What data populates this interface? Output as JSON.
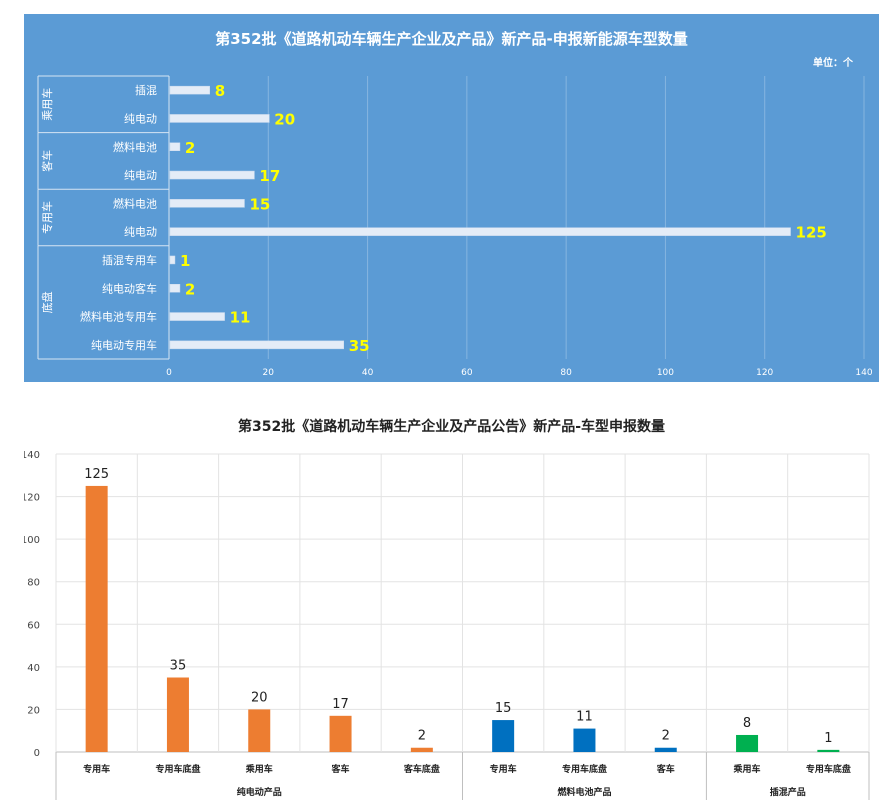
{
  "chart_data": [
    {
      "type": "bar",
      "orientation": "horizontal",
      "title": "第352批《道路机动车辆生产企业及产品》新产品-申报新能源车型数量",
      "unit_label": "单位：个",
      "groups": [
        {
          "name": "乘用车",
          "items": [
            {
              "label": "插混",
              "value": 8
            },
            {
              "label": "纯电动",
              "value": 20
            }
          ]
        },
        {
          "name": "客车",
          "items": [
            {
              "label": "燃料电池",
              "value": 2
            },
            {
              "label": "纯电动",
              "value": 17
            }
          ]
        },
        {
          "name": "专用车",
          "items": [
            {
              "label": "燃料电池",
              "value": 15
            },
            {
              "label": "纯电动",
              "value": 125
            }
          ]
        },
        {
          "name": "底盘",
          "items": [
            {
              "label": "插混专用车",
              "value": 1
            },
            {
              "label": "纯电动客车",
              "value": 2
            },
            {
              "label": "燃料电池专用车",
              "value": 11
            },
            {
              "label": "纯电动专用车",
              "value": 35
            }
          ]
        }
      ],
      "xlim": [
        0,
        140
      ],
      "xticks": [
        0,
        20,
        40,
        60,
        80,
        100,
        120,
        140
      ],
      "grid": true,
      "colors": {
        "background": "#5b9bd5",
        "bar": "#e4ecf7",
        "value_label": "#ffff00",
        "text": "#ffffff"
      }
    },
    {
      "type": "bar",
      "title": "第352批《道路机动车辆生产企业及产品公告》新产品-车型申报数量",
      "groups": [
        {
          "name": "纯电动产品",
          "color": "#ed7d31",
          "categories": [
            "专用车",
            "专用车底盘",
            "乘用车",
            "客车",
            "客车底盘"
          ],
          "values": [
            125,
            35,
            20,
            17,
            2
          ]
        },
        {
          "name": "燃料电池产品",
          "color": "#0070c0",
          "categories": [
            "专用车",
            "专用车底盘",
            "客车"
          ],
          "values": [
            15,
            11,
            2
          ]
        },
        {
          "name": "插混产品",
          "color": "#00b050",
          "categories": [
            "乘用车",
            "专用车底盘"
          ],
          "values": [
            8,
            1
          ]
        }
      ],
      "ylim": [
        0,
        140
      ],
      "yticks": [
        0,
        20,
        40,
        60,
        80,
        100,
        120,
        140
      ],
      "grid": true
    }
  ]
}
